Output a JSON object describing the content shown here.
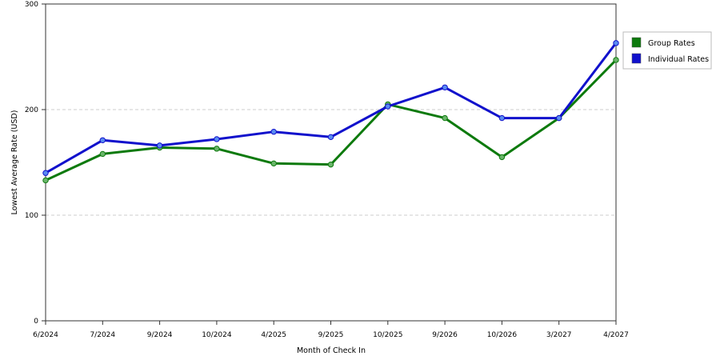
{
  "chart_data": {
    "type": "line",
    "title": "",
    "xlabel": "Month of Check In",
    "ylabel": "Lowest Average Rate (USD)",
    "categories": [
      "6/2024",
      "7/2024",
      "9/2024",
      "10/2024",
      "4/2025",
      "9/2025",
      "10/2025",
      "9/2026",
      "10/2026",
      "3/2027",
      "4/2027"
    ],
    "ylim": [
      0,
      300
    ],
    "yticks": [
      "0",
      "100",
      "200",
      "300"
    ],
    "grid": "horizontal dashed",
    "legend_position": "right",
    "series": [
      {
        "name": "Group Rates",
        "color": "#0d7a0d",
        "values": [
          133,
          158,
          164,
          163,
          149,
          148,
          205,
          192,
          155,
          192,
          247
        ]
      },
      {
        "name": "Individual Rates",
        "color": "#1111cc",
        "values": [
          140,
          171,
          166,
          172,
          179,
          174,
          203,
          221,
          192,
          192,
          263
        ]
      }
    ]
  }
}
